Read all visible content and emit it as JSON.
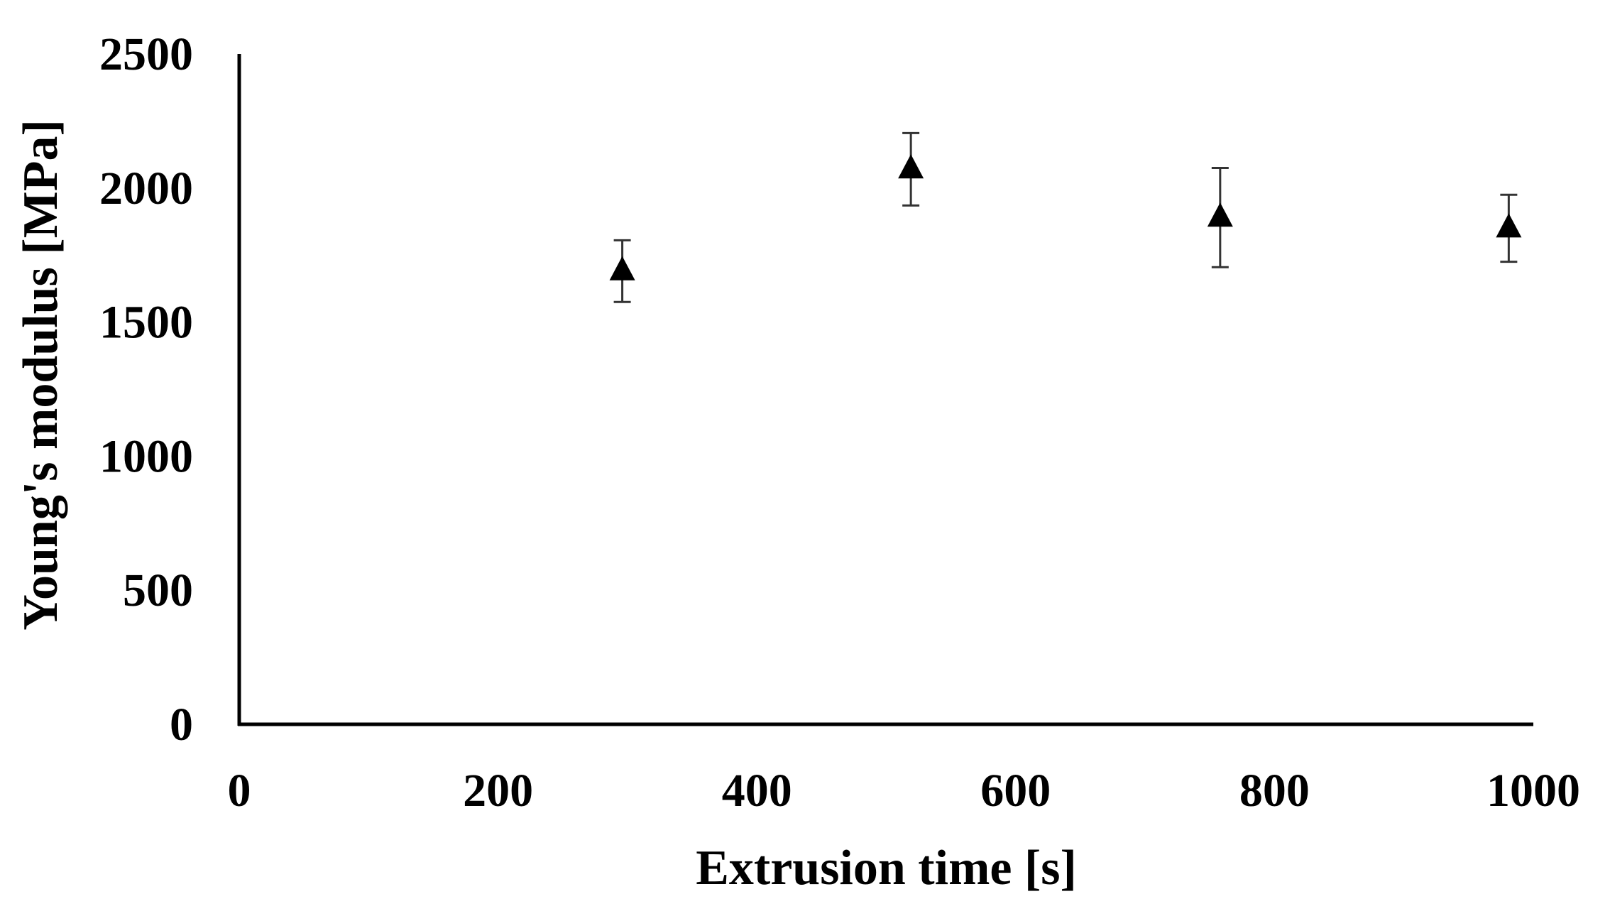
{
  "chart_data": {
    "type": "scatter",
    "title": "",
    "xlabel": "Extrusion time [s]",
    "ylabel": "Young's modulus [MPa]",
    "xlim": [
      0,
      1000
    ],
    "ylim": [
      0,
      2500
    ],
    "x_ticks": [
      0,
      200,
      400,
      600,
      800,
      1000
    ],
    "y_ticks": [
      0,
      500,
      1000,
      1500,
      2000,
      2500
    ],
    "x_tick_labels": [
      "0",
      "200",
      "400",
      "600",
      "800",
      "1000"
    ],
    "y_tick_labels": [
      "0",
      "500",
      "1000",
      "1500",
      "2000",
      "2500"
    ],
    "grid": false,
    "legend": "none",
    "marker": "triangle",
    "marker_color": "#000000",
    "series": [
      {
        "x": [
          296,
          519,
          758,
          981
        ],
        "y": [
          1690,
          2070,
          1890,
          1850
        ],
        "error": [
          115,
          135,
          185,
          125
        ]
      }
    ]
  }
}
